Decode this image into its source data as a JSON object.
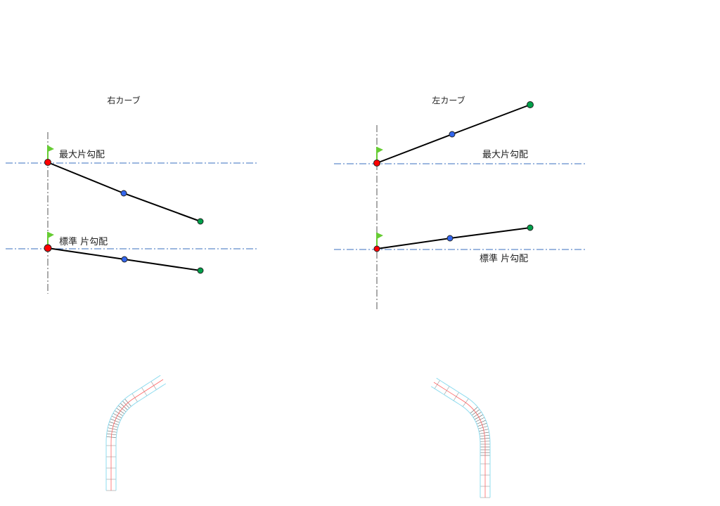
{
  "panels": {
    "right": {
      "title": "右カーブ",
      "max_label": "最大片勾配",
      "std_label": "標準 片勾配"
    },
    "left": {
      "title": "左カーブ",
      "max_label": "最大片勾配",
      "std_label": "標準 片勾配"
    }
  },
  "colors": {
    "axis_line": "#3a6fbf",
    "start_point": "#ff0000",
    "mid_point": "#3366ee",
    "end_point": "#00a04a",
    "flag": "#66cc33",
    "road_edge": "#8fdcef",
    "road_center": "#ff6666",
    "curve_center": "#6666dd"
  },
  "icons": {
    "flag": "flag-icon"
  }
}
